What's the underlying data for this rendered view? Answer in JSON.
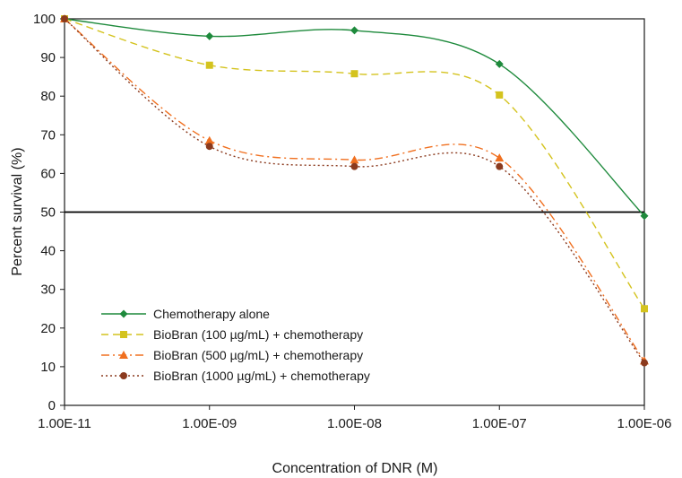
{
  "chart_data": {
    "type": "line",
    "title": "",
    "xlabel": "Concentration of DNR (M)",
    "ylabel": "Percent survival (%)",
    "categories": [
      "1.00E-11",
      "1.00E-09",
      "1.00E-08",
      "1.00E-07",
      "1.00E-06"
    ],
    "ylim": [
      0,
      100
    ],
    "yticks": [
      0,
      10,
      20,
      30,
      40,
      50,
      60,
      70,
      80,
      90,
      100
    ],
    "reference_line": 50,
    "grid": false,
    "legend_position": "lower-left",
    "series": [
      {
        "name": "Chemotherapy alone",
        "values": [
          100,
          95.5,
          97,
          88.3,
          49
        ],
        "color": "#1e8a3c",
        "marker": "diamond",
        "dash": "solid"
      },
      {
        "name": "BioBran (100 µg/mL) + chemotherapy",
        "values": [
          100,
          88,
          85.8,
          80.3,
          25
        ],
        "color": "#d4c31e",
        "marker": "square",
        "dash": "dashed"
      },
      {
        "name": "BioBran (500 µg/mL) + chemotherapy",
        "values": [
          100,
          68.5,
          63.5,
          64,
          11.5
        ],
        "color": "#f07020",
        "marker": "triangle",
        "dash": "dashdot"
      },
      {
        "name": "BioBran (1000 µg/mL) + chemotherapy",
        "values": [
          100,
          67,
          61.8,
          61.8,
          11
        ],
        "color": "#8b3a1e",
        "marker": "circle",
        "dash": "dotted"
      }
    ]
  }
}
